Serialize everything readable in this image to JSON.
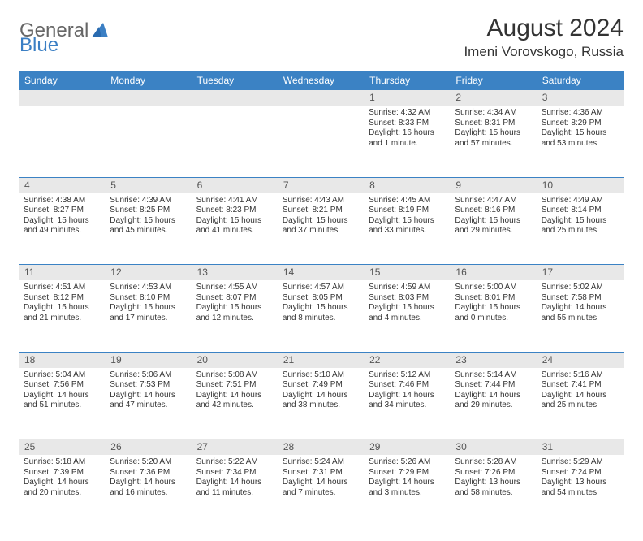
{
  "brand": {
    "part1": "General",
    "part2": "Blue"
  },
  "title": "August 2024",
  "location": "Imeni Vorovskogo, Russia",
  "colors": {
    "header_bg": "#3b82c4",
    "header_fg": "#ffffff",
    "daynum_bg": "#e8e8e8",
    "rule": "#3b82c4"
  },
  "weekdays": [
    "Sunday",
    "Monday",
    "Tuesday",
    "Wednesday",
    "Thursday",
    "Friday",
    "Saturday"
  ],
  "weeks": [
    {
      "nums": [
        "",
        "",
        "",
        "",
        "1",
        "2",
        "3"
      ],
      "cells": [
        null,
        null,
        null,
        null,
        {
          "sunrise": "Sunrise: 4:32 AM",
          "sunset": "Sunset: 8:33 PM",
          "daylight": "Daylight: 16 hours and 1 minute."
        },
        {
          "sunrise": "Sunrise: 4:34 AM",
          "sunset": "Sunset: 8:31 PM",
          "daylight": "Daylight: 15 hours and 57 minutes."
        },
        {
          "sunrise": "Sunrise: 4:36 AM",
          "sunset": "Sunset: 8:29 PM",
          "daylight": "Daylight: 15 hours and 53 minutes."
        }
      ]
    },
    {
      "nums": [
        "4",
        "5",
        "6",
        "7",
        "8",
        "9",
        "10"
      ],
      "cells": [
        {
          "sunrise": "Sunrise: 4:38 AM",
          "sunset": "Sunset: 8:27 PM",
          "daylight": "Daylight: 15 hours and 49 minutes."
        },
        {
          "sunrise": "Sunrise: 4:39 AM",
          "sunset": "Sunset: 8:25 PM",
          "daylight": "Daylight: 15 hours and 45 minutes."
        },
        {
          "sunrise": "Sunrise: 4:41 AM",
          "sunset": "Sunset: 8:23 PM",
          "daylight": "Daylight: 15 hours and 41 minutes."
        },
        {
          "sunrise": "Sunrise: 4:43 AM",
          "sunset": "Sunset: 8:21 PM",
          "daylight": "Daylight: 15 hours and 37 minutes."
        },
        {
          "sunrise": "Sunrise: 4:45 AM",
          "sunset": "Sunset: 8:19 PM",
          "daylight": "Daylight: 15 hours and 33 minutes."
        },
        {
          "sunrise": "Sunrise: 4:47 AM",
          "sunset": "Sunset: 8:16 PM",
          "daylight": "Daylight: 15 hours and 29 minutes."
        },
        {
          "sunrise": "Sunrise: 4:49 AM",
          "sunset": "Sunset: 8:14 PM",
          "daylight": "Daylight: 15 hours and 25 minutes."
        }
      ]
    },
    {
      "nums": [
        "11",
        "12",
        "13",
        "14",
        "15",
        "16",
        "17"
      ],
      "cells": [
        {
          "sunrise": "Sunrise: 4:51 AM",
          "sunset": "Sunset: 8:12 PM",
          "daylight": "Daylight: 15 hours and 21 minutes."
        },
        {
          "sunrise": "Sunrise: 4:53 AM",
          "sunset": "Sunset: 8:10 PM",
          "daylight": "Daylight: 15 hours and 17 minutes."
        },
        {
          "sunrise": "Sunrise: 4:55 AM",
          "sunset": "Sunset: 8:07 PM",
          "daylight": "Daylight: 15 hours and 12 minutes."
        },
        {
          "sunrise": "Sunrise: 4:57 AM",
          "sunset": "Sunset: 8:05 PM",
          "daylight": "Daylight: 15 hours and 8 minutes."
        },
        {
          "sunrise": "Sunrise: 4:59 AM",
          "sunset": "Sunset: 8:03 PM",
          "daylight": "Daylight: 15 hours and 4 minutes."
        },
        {
          "sunrise": "Sunrise: 5:00 AM",
          "sunset": "Sunset: 8:01 PM",
          "daylight": "Daylight: 15 hours and 0 minutes."
        },
        {
          "sunrise": "Sunrise: 5:02 AM",
          "sunset": "Sunset: 7:58 PM",
          "daylight": "Daylight: 14 hours and 55 minutes."
        }
      ]
    },
    {
      "nums": [
        "18",
        "19",
        "20",
        "21",
        "22",
        "23",
        "24"
      ],
      "cells": [
        {
          "sunrise": "Sunrise: 5:04 AM",
          "sunset": "Sunset: 7:56 PM",
          "daylight": "Daylight: 14 hours and 51 minutes."
        },
        {
          "sunrise": "Sunrise: 5:06 AM",
          "sunset": "Sunset: 7:53 PM",
          "daylight": "Daylight: 14 hours and 47 minutes."
        },
        {
          "sunrise": "Sunrise: 5:08 AM",
          "sunset": "Sunset: 7:51 PM",
          "daylight": "Daylight: 14 hours and 42 minutes."
        },
        {
          "sunrise": "Sunrise: 5:10 AM",
          "sunset": "Sunset: 7:49 PM",
          "daylight": "Daylight: 14 hours and 38 minutes."
        },
        {
          "sunrise": "Sunrise: 5:12 AM",
          "sunset": "Sunset: 7:46 PM",
          "daylight": "Daylight: 14 hours and 34 minutes."
        },
        {
          "sunrise": "Sunrise: 5:14 AM",
          "sunset": "Sunset: 7:44 PM",
          "daylight": "Daylight: 14 hours and 29 minutes."
        },
        {
          "sunrise": "Sunrise: 5:16 AM",
          "sunset": "Sunset: 7:41 PM",
          "daylight": "Daylight: 14 hours and 25 minutes."
        }
      ]
    },
    {
      "nums": [
        "25",
        "26",
        "27",
        "28",
        "29",
        "30",
        "31"
      ],
      "cells": [
        {
          "sunrise": "Sunrise: 5:18 AM",
          "sunset": "Sunset: 7:39 PM",
          "daylight": "Daylight: 14 hours and 20 minutes."
        },
        {
          "sunrise": "Sunrise: 5:20 AM",
          "sunset": "Sunset: 7:36 PM",
          "daylight": "Daylight: 14 hours and 16 minutes."
        },
        {
          "sunrise": "Sunrise: 5:22 AM",
          "sunset": "Sunset: 7:34 PM",
          "daylight": "Daylight: 14 hours and 11 minutes."
        },
        {
          "sunrise": "Sunrise: 5:24 AM",
          "sunset": "Sunset: 7:31 PM",
          "daylight": "Daylight: 14 hours and 7 minutes."
        },
        {
          "sunrise": "Sunrise: 5:26 AM",
          "sunset": "Sunset: 7:29 PM",
          "daylight": "Daylight: 14 hours and 3 minutes."
        },
        {
          "sunrise": "Sunrise: 5:28 AM",
          "sunset": "Sunset: 7:26 PM",
          "daylight": "Daylight: 13 hours and 58 minutes."
        },
        {
          "sunrise": "Sunrise: 5:29 AM",
          "sunset": "Sunset: 7:24 PM",
          "daylight": "Daylight: 13 hours and 54 minutes."
        }
      ]
    }
  ]
}
